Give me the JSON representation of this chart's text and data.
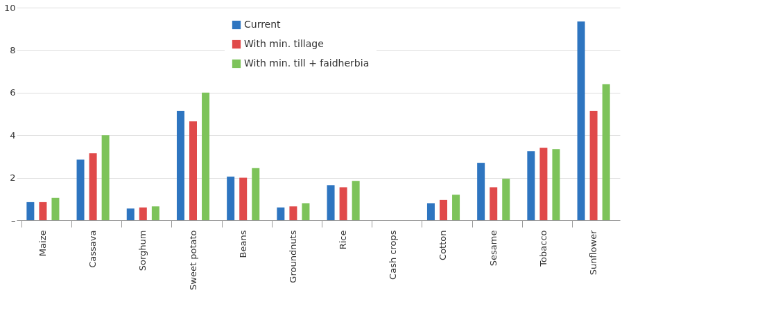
{
  "chart_data": {
    "type": "bar",
    "categories": [
      "Maize",
      "Cassava",
      "Sorghum",
      "Sweet potato",
      "Beans",
      "Groundnuts",
      "Rice",
      "Cash crops",
      "Cotton",
      "Sesame",
      "Tobacco",
      "Sunflower"
    ],
    "series": [
      {
        "name": "Current",
        "color": "#2e75c0",
        "values": [
          0.85,
          2.85,
          0.55,
          5.15,
          2.05,
          0.6,
          1.65,
          null,
          0.8,
          2.7,
          3.25,
          9.35
        ]
      },
      {
        "name": "With min. tillage",
        "color": "#e04a4a",
        "values": [
          0.85,
          3.15,
          0.6,
          4.65,
          2.0,
          0.65,
          1.55,
          null,
          0.95,
          1.55,
          3.4,
          5.15
        ]
      },
      {
        "name": "With min. till + faidherbia",
        "color": "#7dc35a",
        "values": [
          1.05,
          4.0,
          0.65,
          6.0,
          2.45,
          0.8,
          1.85,
          null,
          1.2,
          1.95,
          3.35,
          6.4
        ]
      }
    ],
    "ylim": [
      0,
      10
    ],
    "yticks": [
      {
        "value": 0,
        "label": "–"
      },
      2,
      4,
      6,
      8,
      10
    ],
    "grid": "y",
    "legend": "top"
  }
}
